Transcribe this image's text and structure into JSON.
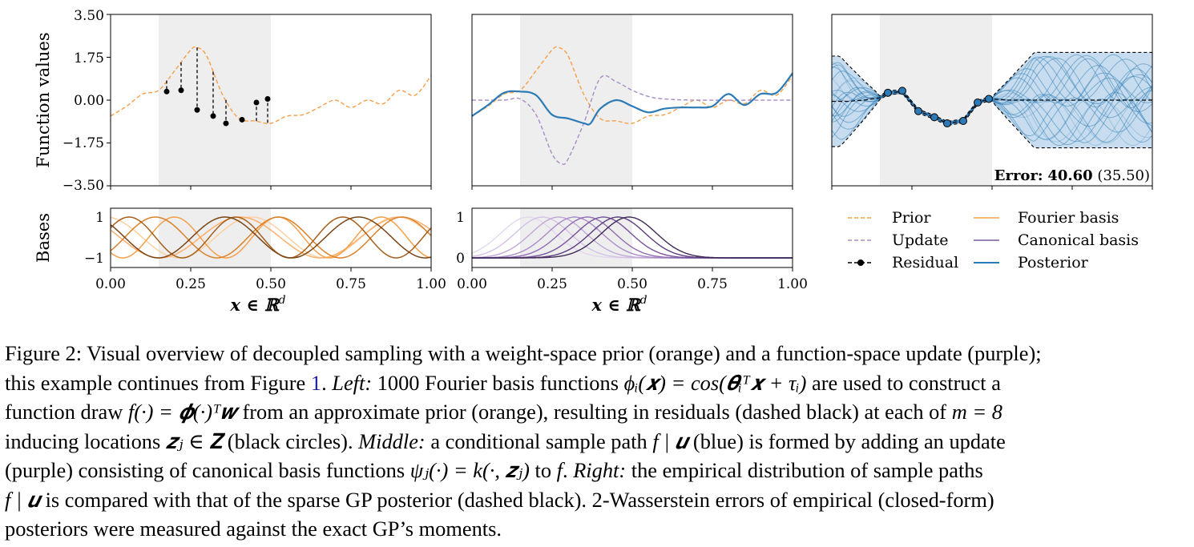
{
  "figure": {
    "left_panel": {
      "ylabel": "Function values",
      "ytick_labels": [
        "3.50",
        "1.75",
        "0.00",
        "−1.75",
        "−3.50"
      ],
      "yticks": [
        3.5,
        1.75,
        0,
        -1.75,
        -3.5
      ]
    },
    "bases_panel": {
      "ylabel": "Bases",
      "left_ytick_labels": [
        "1",
        "−1"
      ],
      "middle_ytick_labels": [
        "1",
        "0"
      ]
    },
    "xtick_labels": [
      "0.00",
      "0.25",
      "0.50",
      "0.75",
      "1.00"
    ],
    "xticks": [
      0,
      0.25,
      0.5,
      0.75,
      1.0
    ],
    "xlabel": "𝒙 ∈ ℝ",
    "xlabel_sup": "d",
    "error_label": "Error:",
    "error_value": "40.60",
    "error_closed": "(35.50)",
    "inducing_region": [
      0.15,
      0.5
    ],
    "legend": [
      {
        "label": "Prior",
        "color": "#f5a04a",
        "style": "dashed"
      },
      {
        "label": "Fourier basis",
        "color": "#f5a04a",
        "style": "solid"
      },
      {
        "label": "Update",
        "color": "#a98bc7",
        "style": "dashed"
      },
      {
        "label": "Canonical basis",
        "color": "#7b5a9e",
        "style": "solid"
      },
      {
        "label": "Residual",
        "color": "#000000",
        "style": "dashed-marker"
      },
      {
        "label": "Posterior",
        "color": "#2c7bb6",
        "style": "solid"
      }
    ],
    "colors": {
      "prior": "#f5a04a",
      "update": "#a98bc7",
      "posterior": "#2c7bb6",
      "shade": "#eeeeee",
      "band": "#c7dcee"
    },
    "chart_data": [
      {
        "type": "line",
        "ylim": [
          -3.5,
          3.5
        ],
        "xlim": [
          0,
          1
        ],
        "series": [
          {
            "name": "Prior",
            "x": [
              0,
              0.05,
              0.1,
              0.15,
              0.2,
              0.25,
              0.27,
              0.3,
              0.35,
              0.4,
              0.45,
              0.5,
              0.55,
              0.6,
              0.65,
              0.7,
              0.75,
              0.8,
              0.85,
              0.9,
              0.95,
              1.0
            ],
            "values": [
              -0.65,
              -0.25,
              0.25,
              0.4,
              1.2,
              2.05,
              2.15,
              1.8,
              0.2,
              -0.75,
              -0.85,
              -0.95,
              -0.65,
              -0.6,
              -0.3,
              0.0,
              -0.3,
              0.0,
              -0.15,
              0.4,
              0.2,
              1.0
            ]
          },
          {
            "name": "Residual",
            "x": [
              0.175,
              0.22,
              0.27,
              0.32,
              0.36,
              0.41,
              0.455,
              0.49
            ],
            "values": [
              0.35,
              0.4,
              -0.4,
              -0.65,
              -0.95,
              -0.8,
              -0.1,
              0.05
            ]
          }
        ]
      },
      {
        "type": "line",
        "ylim": [
          -3.5,
          3.5
        ],
        "xlim": [
          0,
          1
        ],
        "series": [
          {
            "name": "Prior",
            "x": [
              0,
              0.05,
              0.1,
              0.15,
              0.2,
              0.25,
              0.27,
              0.3,
              0.35,
              0.4,
              0.45,
              0.5,
              0.55,
              0.6,
              0.65,
              0.7,
              0.75,
              0.8,
              0.85,
              0.9,
              0.95,
              1.0
            ],
            "values": [
              -0.65,
              -0.25,
              0.25,
              0.4,
              1.2,
              2.05,
              2.15,
              1.8,
              0.2,
              -0.75,
              -0.85,
              -0.95,
              -0.65,
              -0.6,
              -0.3,
              0.0,
              -0.3,
              0.0,
              -0.15,
              0.4,
              0.2,
              1.0
            ]
          },
          {
            "name": "Update",
            "x": [
              0,
              0.1,
              0.15,
              0.2,
              0.25,
              0.28,
              0.3,
              0.35,
              0.4,
              0.45,
              0.5,
              0.55,
              0.6,
              0.7,
              1.0
            ],
            "values": [
              0,
              0,
              0.05,
              -0.6,
              -2.2,
              -2.6,
              -2.4,
              -0.9,
              0.9,
              0.75,
              0.4,
              0.15,
              0.05,
              0,
              0
            ]
          },
          {
            "name": "Posterior",
            "x": [
              0,
              0.05,
              0.1,
              0.15,
              0.2,
              0.25,
              0.3,
              0.35,
              0.37,
              0.4,
              0.45,
              0.5,
              0.55,
              0.6,
              0.65,
              0.7,
              0.75,
              0.8,
              0.85,
              0.9,
              0.95,
              1.0
            ],
            "values": [
              -0.65,
              -0.2,
              0.3,
              0.35,
              0.2,
              -0.6,
              -0.75,
              -0.95,
              -0.95,
              -0.35,
              0.0,
              -0.25,
              -0.5,
              -0.35,
              -0.3,
              -0.3,
              -0.25,
              0.25,
              -0.2,
              0.25,
              0.3,
              1.1
            ]
          }
        ]
      },
      {
        "type": "line",
        "ylim": [
          -3.5,
          3.5
        ],
        "xlim": [
          0,
          1
        ],
        "series": [
          {
            "name": "Posterior",
            "x": [
              0,
              0.05,
              0.1,
              0.15,
              0.175,
              0.22,
              0.27,
              0.32,
              0.36,
              0.41,
              0.455,
              0.49,
              0.55,
              0.6,
              0.7,
              0.8,
              0.9,
              1.0
            ],
            "values": [
              -0.05,
              -0.05,
              0.0,
              0.1,
              0.3,
              0.35,
              -0.45,
              -0.7,
              -0.95,
              -0.85,
              -0.1,
              0.05,
              0.0,
              0.0,
              0.0,
              0.0,
              0.0,
              0.0
            ]
          },
          {
            "name": "Residual",
            "x": [
              0.175,
              0.22,
              0.27,
              0.32,
              0.36,
              0.41,
              0.455,
              0.49
            ],
            "values": [
              0.3,
              0.38,
              -0.45,
              -0.7,
              -0.95,
              -0.85,
              -0.1,
              0.05
            ]
          }
        ]
      }
    ]
  },
  "caption": {
    "l1_a": "Figure 2: Visual overview of decoupled sampling with a weight-space prior (orange) and a function-space update (purple);",
    "l2_a": "this example continues from Figure ",
    "l2_ref": "1",
    "l2_b": ". ",
    "l2_left": "Left:",
    "l2_c": " 1000 Fourier basis functions ",
    "l2_m1": "ϕᵢ(𝒙) = cos(𝜽ᵢᵀ𝒙 + τᵢ)",
    "l2_d": " are used to construct a",
    "l3_a": "function draw ",
    "l3_m1": "f(·) = 𝝓(·)ᵀ𝒘",
    "l3_b": " from an approximate prior (orange), resulting in residuals (dashed black) at each of ",
    "l3_m2": "m = 8",
    "l4_a": "inducing locations ",
    "l4_m1": "𝒛ⱼ ∈ 𝐙",
    "l4_b": " (black circles). ",
    "l4_middle": "Middle:",
    "l4_c": " a conditional sample path ",
    "l4_m2": "f | 𝒖",
    "l4_d": " (blue) is formed by adding an update",
    "l5_a": "(purple) consisting of canonical basis functions ",
    "l5_m1": "ψⱼ(·) = k(·, 𝒛ⱼ)",
    "l5_b": " to ",
    "l5_m2": "f",
    "l5_c": ". ",
    "l5_right": "Right:",
    "l5_d": " the empirical distribution of sample paths",
    "l6_m1": "f | 𝒖",
    "l6_a": " is compared with that of the sparse GP posterior (dashed black). 2-Wasserstein errors of empirical (closed-form)",
    "l7_a": "posteriors were measured against the exact GP’s moments."
  }
}
